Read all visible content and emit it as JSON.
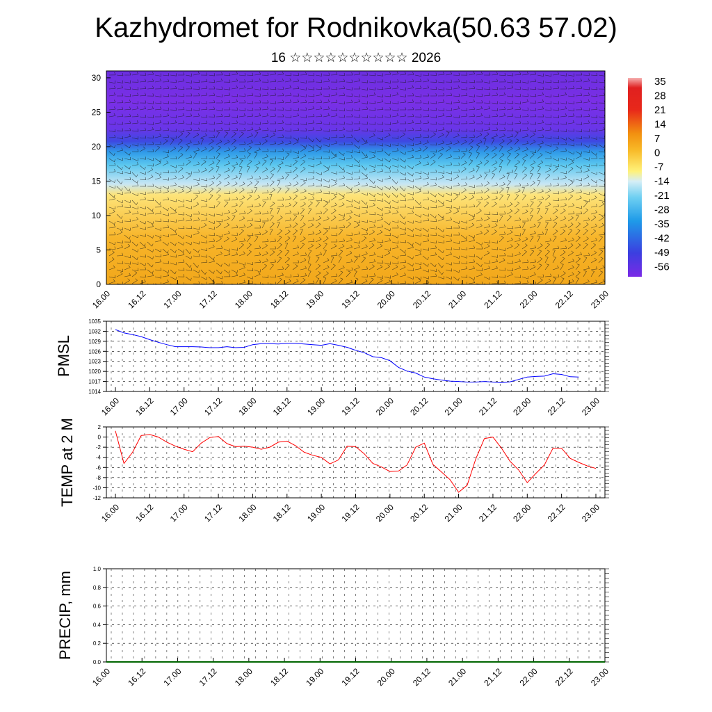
{
  "title": "Kazhydromet for Rodnikovka(50.63 57.02)",
  "subtitle": "16 ☆☆☆☆☆☆☆☆☆☆ 2026",
  "colors": {
    "pressure_line": "#0000ff",
    "temp_line": "#ff0000",
    "precip_line": "#006400"
  },
  "chart_data": [
    {
      "type": "heatmap",
      "name_role": "vertical temperature/wind cross-section",
      "x_ticks": [
        "16.00",
        "16.12",
        "17.00",
        "17.12",
        "18.00",
        "18.12",
        "19.00",
        "19.12",
        "20.00",
        "20.12",
        "21.00",
        "21.12",
        "22.00",
        "22.12",
        "23.00"
      ],
      "ylim": [
        0,
        31
      ],
      "y_ticks": [
        0,
        5,
        10,
        15,
        20,
        25,
        30
      ],
      "colorbar_labels": [
        "35",
        "28",
        "21",
        "14",
        "7",
        "0",
        "-7",
        "-14",
        "-21",
        "-28",
        "-35",
        "-42",
        "-49",
        "-56"
      ],
      "overlay": "wind barbs"
    },
    {
      "type": "line",
      "ylabel": "PMSL",
      "ylim": [
        1014,
        1035
      ],
      "y_ticks": [
        1014,
        1017,
        1020,
        1023,
        1026,
        1029,
        1032,
        1035
      ],
      "x_ticks": [
        "16.00",
        "16.12",
        "17.00",
        "17.12",
        "18.00",
        "18.12",
        "19.00",
        "19.12",
        "20.00",
        "20.12",
        "21.00",
        "21.12",
        "22.00",
        "22.12",
        "23.00"
      ],
      "x": [
        0,
        3,
        6,
        9,
        12,
        15,
        18,
        21,
        24,
        27,
        30,
        33,
        36,
        39,
        42,
        45,
        48,
        51,
        54,
        57,
        60,
        63,
        66,
        69,
        72,
        75,
        78,
        81,
        84,
        87,
        90,
        93,
        96,
        99,
        102,
        105,
        108,
        111,
        114,
        117,
        120,
        123,
        126,
        129,
        132,
        135,
        138,
        141,
        144,
        147,
        150,
        153,
        156,
        159,
        162,
        165,
        168
      ],
      "values": [
        1032.5,
        1031.5,
        1031,
        1030.4,
        1029.5,
        1028.7,
        1028,
        1027.4,
        1027.4,
        1027.4,
        1027.3,
        1027.1,
        1027.1,
        1027.4,
        1027.1,
        1027.2,
        1028,
        1028.3,
        1028.3,
        1028.2,
        1028.4,
        1028.4,
        1028.2,
        1028,
        1027.8,
        1028.3,
        1027.8,
        1027.2,
        1026.3,
        1025.6,
        1024.4,
        1024.1,
        1023.2,
        1021.2,
        1020.1,
        1019.5,
        1018.3,
        1017.8,
        1017.4,
        1017.1,
        1017,
        1016.8,
        1016.8,
        1017,
        1016.8,
        1016.6,
        1016.9,
        1017.6,
        1018.3,
        1018.5,
        1018.6,
        1019.3,
        1019.1,
        1018.4,
        1018.3,
        null,
        null
      ]
    },
    {
      "type": "line",
      "ylabel": "TEMP at 2 M",
      "ylim": [
        -12,
        2
      ],
      "y_ticks": [
        -12,
        -10,
        -8,
        -6,
        -4,
        -2,
        0,
        2
      ],
      "x_ticks": [
        "16.00",
        "16.12",
        "17.00",
        "17.12",
        "18.00",
        "18.12",
        "19.00",
        "19.12",
        "20.00",
        "20.12",
        "21.00",
        "21.12",
        "22.00",
        "22.12",
        "23.00"
      ],
      "x": [
        0,
        3,
        6,
        9,
        12,
        15,
        18,
        21,
        24,
        27,
        30,
        33,
        36,
        39,
        42,
        45,
        48,
        51,
        54,
        57,
        60,
        63,
        66,
        69,
        72,
        75,
        78,
        81,
        84,
        87,
        90,
        93,
        96,
        99,
        102,
        105,
        108,
        111,
        114,
        117,
        120,
        123,
        126,
        129,
        132,
        135,
        138,
        141,
        144,
        147,
        150,
        153,
        156,
        159,
        162,
        165,
        168
      ],
      "values": [
        1.2,
        -5.2,
        -3,
        0.3,
        0.5,
        0,
        -1,
        -1.8,
        -2.4,
        -2.9,
        -1.2,
        -0.1,
        0.1,
        -1.3,
        -1.9,
        -1.8,
        -2,
        -2.4,
        -2,
        -1,
        -0.8,
        -1.7,
        -3,
        -3.6,
        -4,
        -5.3,
        -4.5,
        -1.8,
        -1.9,
        -3.3,
        -5.2,
        -5.9,
        -6.8,
        -6.7,
        -5.5,
        -2,
        -1.2,
        -5.4,
        -6.9,
        -8.4,
        -10.9,
        -9.5,
        -4.3,
        -0.3,
        0,
        -2.2,
        -4.8,
        -6.5,
        -9,
        -7.2,
        -5.5,
        -2.2,
        -2.2,
        -4.2,
        -5,
        -5.7,
        -6.2
      ]
    },
    {
      "type": "line",
      "ylabel": "PRECIP, mm",
      "ylim": [
        0,
        1
      ],
      "y_ticks": [
        "0.0",
        "0.2",
        "0.4",
        "0.6",
        "0.8",
        "1.0"
      ],
      "x_ticks": [
        "16.00",
        "16.12",
        "17.00",
        "17.12",
        "18.00",
        "18.12",
        "19.00",
        "19.12",
        "20.00",
        "20.12",
        "21.00",
        "21.12",
        "22.00",
        "22.12",
        "23.00"
      ],
      "values_constant": 0
    }
  ]
}
